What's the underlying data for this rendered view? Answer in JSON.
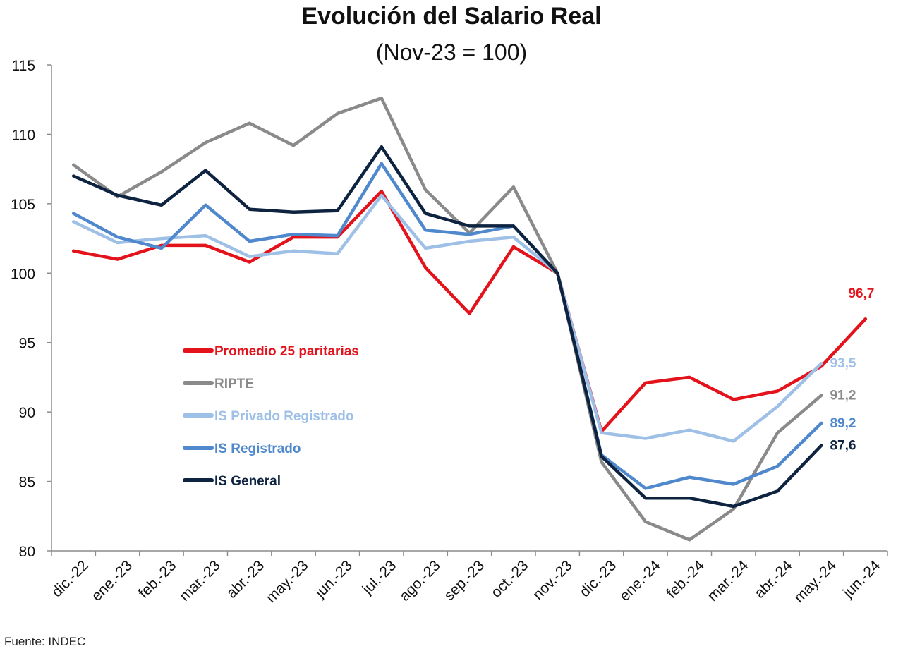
{
  "chart_data": {
    "type": "line",
    "title": "Evolución del Salario Real",
    "subtitle": "(Nov-23 = 100)",
    "source": "Fuente: INDEC",
    "xlabel": "",
    "ylabel": "",
    "ylim": [
      80,
      115
    ],
    "yticks": [
      80,
      85,
      90,
      95,
      100,
      105,
      110,
      115
    ],
    "ytick_labels": [
      "80",
      "85",
      "90",
      "95",
      "100",
      "105",
      "110",
      "115"
    ],
    "grid": false,
    "legend_position": "middle-left",
    "categories": [
      "dic.-22",
      "ene.-23",
      "feb.-23",
      "mar.-23",
      "abr.-23",
      "may.-23",
      "jun.-23",
      "jul.-23",
      "ago.-23",
      "sep.-23",
      "oct.-23",
      "nov.-23",
      "dic.-23",
      "ene.-24",
      "feb.-24",
      "mar.-24",
      "abr.-24",
      "may.-24",
      "jun.-24"
    ],
    "series": [
      {
        "name": "Promedio 25 paritarias",
        "color": "#e3121b",
        "end_label": "96,7",
        "values": [
          101.6,
          101.0,
          102.0,
          102.0,
          100.8,
          102.6,
          102.6,
          105.9,
          100.4,
          97.1,
          101.9,
          100.0,
          88.6,
          92.1,
          92.5,
          90.9,
          91.5,
          93.3,
          96.7
        ]
      },
      {
        "name": "RIPTE",
        "color": "#8a8a8a",
        "end_label": "91,2",
        "values": [
          107.8,
          105.5,
          107.3,
          109.4,
          110.8,
          109.2,
          111.5,
          112.6,
          106.0,
          102.9,
          106.2,
          100.0,
          86.4,
          82.1,
          80.8,
          83.0,
          88.5,
          91.2,
          null
        ]
      },
      {
        "name": "IS Privado Registrado",
        "color": "#9fc0e6",
        "end_label": "93,5",
        "values": [
          103.7,
          102.2,
          102.5,
          102.7,
          101.2,
          101.6,
          101.4,
          105.6,
          101.8,
          102.3,
          102.6,
          100.0,
          88.5,
          88.1,
          88.7,
          87.9,
          90.4,
          93.5,
          null
        ]
      },
      {
        "name": "IS Registrado",
        "color": "#4f88cc",
        "end_label": "89,2",
        "values": [
          104.3,
          102.6,
          101.8,
          104.9,
          102.3,
          102.8,
          102.7,
          107.9,
          103.1,
          102.8,
          103.4,
          100.0,
          86.9,
          84.5,
          85.3,
          84.8,
          86.1,
          89.2,
          null
        ]
      },
      {
        "name": "IS General",
        "color": "#0e2340",
        "end_label": "87,6",
        "values": [
          107.0,
          105.6,
          104.9,
          107.4,
          104.6,
          104.4,
          104.5,
          109.1,
          104.3,
          103.4,
          103.4,
          100.0,
          86.8,
          83.8,
          83.8,
          83.2,
          84.3,
          87.6,
          null
        ]
      }
    ]
  }
}
